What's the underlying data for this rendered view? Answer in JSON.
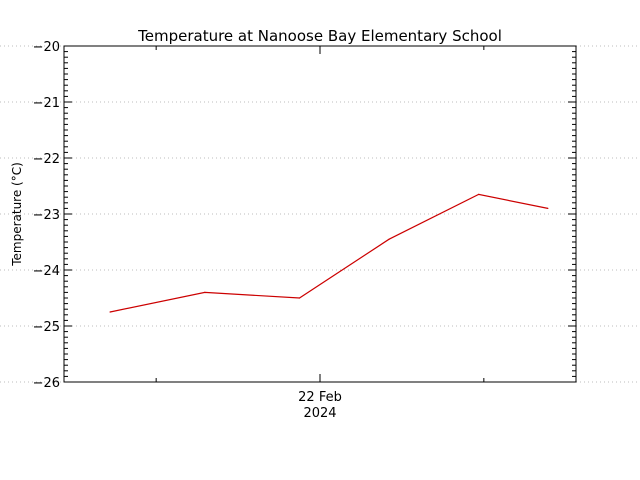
{
  "chart_data": {
    "type": "line",
    "title": "Temperature at Nanoose Bay Elementary School",
    "ylabel": "Temperature (°C)",
    "xlabel": "",
    "ylim": [
      -26,
      -20
    ],
    "yticks": [
      -20,
      -21,
      -22,
      -23,
      -24,
      -25,
      -26
    ],
    "y_tick_labels": [
      "−20",
      "−21",
      "−22",
      "−23",
      "−24",
      "−25",
      "−26"
    ],
    "x_tick_labels": [
      {
        "line1": "22 Feb",
        "line2": "2024",
        "pos": 0.5
      }
    ],
    "grid": true,
    "series": [
      {
        "color": "#cc0000",
        "x": [
          0.09,
          0.275,
          0.46,
          0.635,
          0.81,
          0.945
        ],
        "values": [
          -24.75,
          -24.4,
          -24.5,
          -23.45,
          -22.65,
          -22.9
        ]
      }
    ]
  }
}
